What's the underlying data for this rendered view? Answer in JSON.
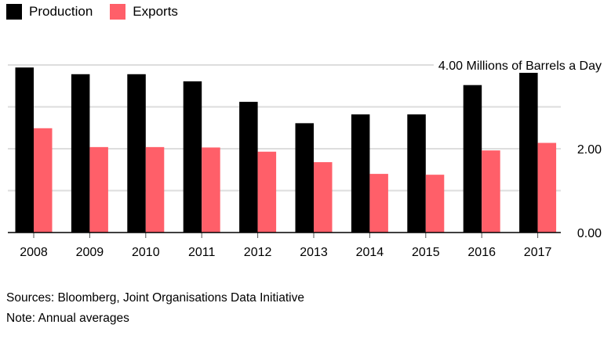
{
  "chart_data": {
    "type": "bar",
    "categories": [
      "2008",
      "2009",
      "2010",
      "2011",
      "2012",
      "2013",
      "2014",
      "2015",
      "2016",
      "2017"
    ],
    "series": [
      {
        "name": "Production",
        "color": "#000000",
        "values": [
          3.94,
          3.78,
          3.78,
          3.61,
          3.12,
          2.61,
          2.82,
          2.82,
          3.52,
          3.82
        ]
      },
      {
        "name": "Exports",
        "color": "#ff5f69",
        "values": [
          2.49,
          2.04,
          2.04,
          2.03,
          1.93,
          1.68,
          1.4,
          1.38,
          1.96,
          2.14
        ]
      }
    ],
    "ylim": [
      0,
      4
    ],
    "yticks": [
      "0.00",
      "2.00",
      "4.00"
    ],
    "yunit": "Millions of Barrels a Day",
    "grid": true,
    "legend": "top-left"
  },
  "footer": {
    "sources": "Sources: Bloomberg, Joint Organisations Data Initiative",
    "note": "Note: Annual averages"
  }
}
